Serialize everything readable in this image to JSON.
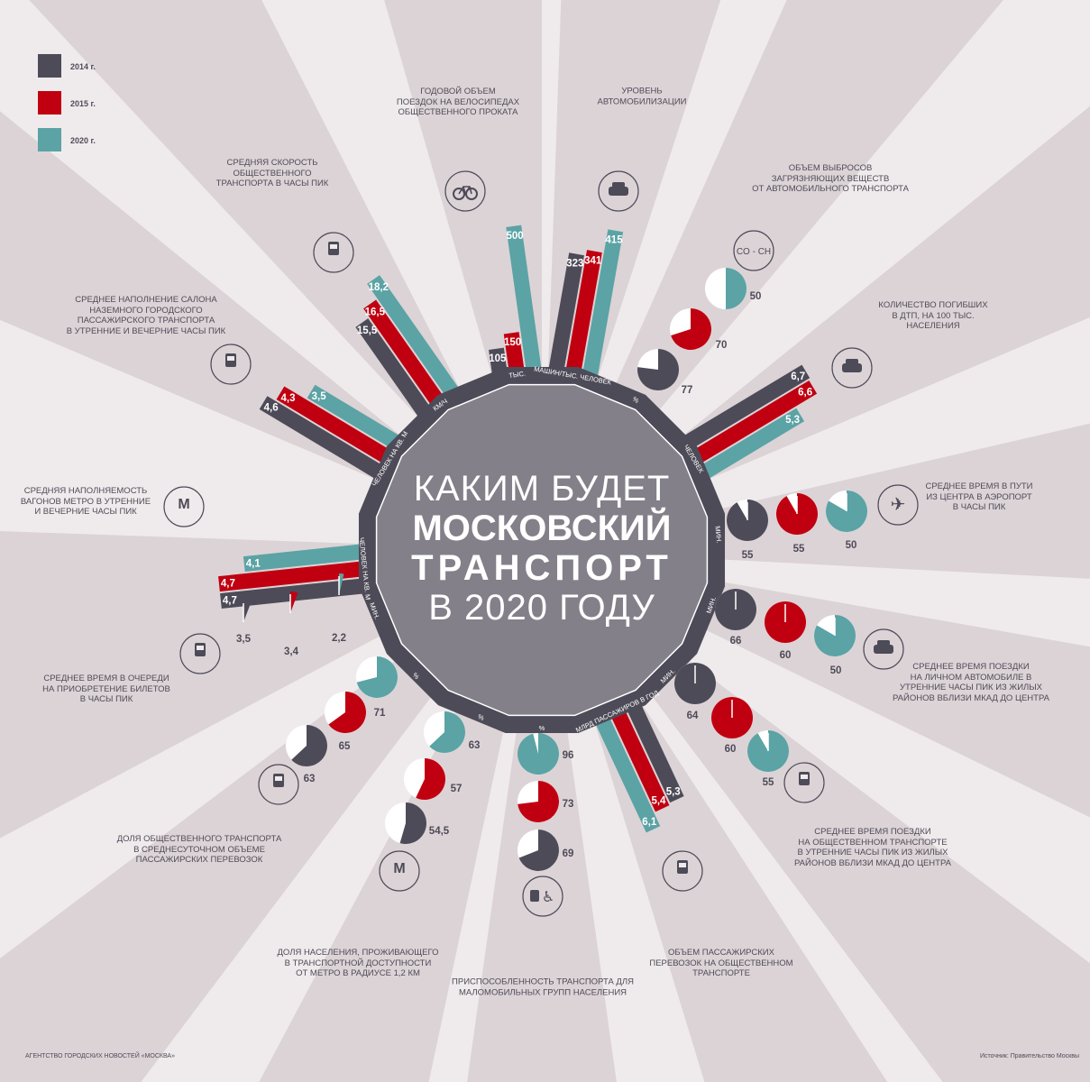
{
  "title": {
    "line1": "КАКИМ БУДЕТ",
    "line2": "МОСКОВСКИЙ",
    "line3": "ТРАНСПОРТ",
    "line4": "В 2020 ГОДУ"
  },
  "legend": [
    {
      "label": "2014 г.",
      "color": "#4e4b58"
    },
    {
      "label": "2015 г.",
      "color": "#c00010"
    },
    {
      "label": "2020 г.",
      "color": "#5ba3a5"
    }
  ],
  "footer": {
    "agency": "АГЕНТСТВО ГОРОДСКИХ НОВОСТЕЙ «МОСКВА»",
    "source": "Источник: Правительство Москвы"
  },
  "chart_data": {
    "type": "radial infographic (bars and pies)",
    "years": [
      "2014",
      "2015",
      "2020"
    ],
    "metrics": [
      {
        "id": "speed",
        "title": "Средняя скорость\nобщественного\nтранспорта в часы пик",
        "unit": "км/ч",
        "mark": "bar",
        "icon": "bus-icon",
        "values": [
          "15,5",
          "16,5",
          "18,2"
        ]
      },
      {
        "id": "bikes",
        "title": "Годовой объем\nпоездок на велосипедах\nобщественного проката",
        "unit": "тыс.",
        "mark": "bar",
        "icon": "bicycle-icon",
        "values": [
          "105",
          "150",
          "500"
        ]
      },
      {
        "id": "cars",
        "title": "Уровень\nавтомобилизации",
        "unit": "машин/тыс. человек",
        "mark": "bar",
        "icon": "car-icon",
        "values": [
          "323",
          "341",
          "415"
        ]
      },
      {
        "id": "emissions",
        "title": "Объем выбросов\nзагрязняющих веществ\nот автомобильного транспорта",
        "unit": "%",
        "mark": "pie",
        "icon": "co-ch-icon",
        "icon_text": "CO - CH",
        "values": [
          "77",
          "70",
          "50"
        ]
      },
      {
        "id": "deaths",
        "title": "Количество погибших\nв ДТП, на 100 тыс.\nнаселения",
        "unit": "человек",
        "mark": "bar",
        "icon": "car-crash-icon",
        "values": [
          "6,7",
          "6,6",
          "5,3"
        ]
      },
      {
        "id": "airport",
        "title": "Среднее время в пути\nиз центра в аэропорт\nв часы пик",
        "unit": "мин.",
        "mark": "clock",
        "icon": "airplane-icon",
        "values": [
          "55",
          "55",
          "50"
        ]
      },
      {
        "id": "cartrip",
        "title": "Среднее время поездки\nна личном автомобиле в\nутренние часы пик из жилых\nрайонов вблизи МКАД до центра",
        "unit": "мин.",
        "mark": "clock",
        "icon": "car-clock-icon",
        "values": [
          "66",
          "60",
          "50"
        ]
      },
      {
        "id": "ptrip",
        "title": "Среднее время поездки\nна общественном транспорте\nв утренние часы пик из жилых\nрайонов вблизи МКАД до центра",
        "unit": "мин.",
        "mark": "clock",
        "icon": "bus-clock-icon",
        "values": [
          "64",
          "60",
          "55"
        ]
      },
      {
        "id": "volume",
        "title": "Объем пассажирских\nперевозок на общественном\nтранспорте",
        "unit": "млрд пассажиров в год",
        "mark": "bar",
        "icon": "bus-passengers-icon",
        "values": [
          "5,3",
          "5,4",
          "6,1"
        ]
      },
      {
        "id": "access",
        "title": "Приспособленность транспорта для\nмаломобильных групп населения",
        "unit": "%",
        "mark": "pie",
        "icon": "wheelchair-icon",
        "values": [
          "69",
          "73",
          "96"
        ]
      },
      {
        "id": "metropop",
        "title": "Доля населения, проживающего\nв транспортной доступности\nот метро в радиусе 1,2 км",
        "unit": "%",
        "mark": "pie",
        "icon": "metro-house-icon",
        "values": [
          "54,5",
          "57",
          "63"
        ]
      },
      {
        "id": "pshare",
        "title": "Доля общественного транспорта\nв среднесуточном объеме\nпассажирских перевозок",
        "unit": "%",
        "mark": "pie",
        "icon": "bus-front-icon",
        "values": [
          "63",
          "65",
          "71"
        ]
      },
      {
        "id": "ticket",
        "title": "Среднее время в очереди\nна приобретение билетов\nв часы пик",
        "unit": "мин.",
        "mark": "clock-wedge",
        "icon": "ticket-clock-icon",
        "values": [
          "3,5",
          "3,4",
          "2,2"
        ]
      },
      {
        "id": "metrofill",
        "title": "Средняя наполняемость\nвагонов метро в утренние\nи вечерние часы пик",
        "unit": "человек на кв. м",
        "mark": "bar",
        "icon": "metro-people-icon",
        "values": [
          "4,7",
          "4,7",
          "4,1"
        ]
      },
      {
        "id": "surfacefill",
        "title": "Среднее наполнение салона\nназемного городского\nпассажирского транспорта\nв утренние и вечерние часы пик",
        "unit": "человек на кв. м",
        "mark": "bar",
        "icon": "bus-people-icon",
        "values": [
          "4,6",
          "4,3",
          "3,5"
        ]
      }
    ]
  },
  "colors": {
    "y2014": "#4e4b58",
    "y2015": "#c00010",
    "y2020": "#5ba3a5",
    "background": "#efebec",
    "ray": "#dcd3d6",
    "ring": "#4e4b58",
    "core": "#838089"
  }
}
